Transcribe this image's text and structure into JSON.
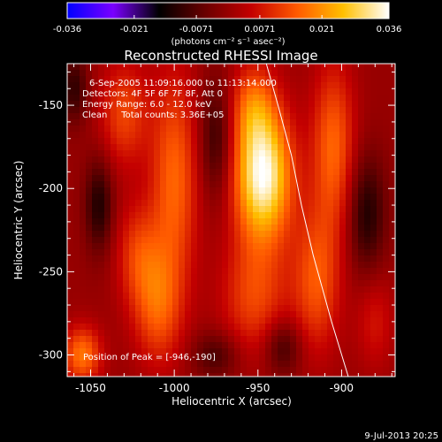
{
  "colorbar": {
    "tick_labels": [
      "-0.036",
      "-0.021",
      "-0.0071",
      "0.0071",
      "0.021",
      "0.036"
    ],
    "tick_values": [
      -0.036,
      -0.021,
      -0.0071,
      0.0071,
      0.021,
      0.036
    ],
    "range": [
      -0.036,
      0.036
    ],
    "units_label": "(photons cm⁻² s⁻¹ asec⁻²)",
    "colormap_stops": [
      "#0000ff",
      "#7a00ff",
      "#000000",
      "#6a0000",
      "#c40000",
      "#ff5a00",
      "#ffbf00",
      "#ffffff"
    ]
  },
  "chart_data": {
    "type": "heatmap",
    "title": "Reconstructed RHESSI Image",
    "xlabel": "Heliocentric X (arcsec)",
    "ylabel": "Heliocentric Y (arcsec)",
    "xlim": [
      -1064,
      -868
    ],
    "ylim": [
      -313,
      -125
    ],
    "xticks": [
      -1050,
      -1000,
      -950,
      -900
    ],
    "yticks": [
      -300,
      -250,
      -200,
      -150
    ],
    "grid": false,
    "peak": {
      "x": -946,
      "y": -190
    },
    "annotations": {
      "time_range": "6-Sep-2005 11:09:16.000 to 11:13:14.000",
      "detectors": "Detectors: 4F 5F 6F 7F 8F, Att 0",
      "energy_range": "Energy Range: 6.0 - 12.0 keV",
      "clean_counts": "Clean     Total counts: 3.36E+05",
      "peak_position": "Position of Peak = [-946,-190]"
    },
    "limb_curve": [
      [
        -945,
        -125
      ],
      [
        -938,
        -150
      ],
      [
        -930,
        -180
      ],
      [
        -924,
        -210
      ],
      [
        -917,
        -240
      ],
      [
        -906,
        -280
      ],
      [
        -896,
        -313
      ]
    ],
    "intensity_sources": [
      {
        "x": -947,
        "y": -192,
        "sx": 12,
        "sy": 28,
        "amp": 1.0
      },
      {
        "x": -953,
        "y": -150,
        "sx": 9,
        "sy": 18,
        "amp": 0.35
      },
      {
        "x": -952,
        "y": -265,
        "sx": 14,
        "sy": 25,
        "amp": 0.35
      },
      {
        "x": -1000,
        "y": -195,
        "sx": 10,
        "sy": 45,
        "amp": 0.45
      },
      {
        "x": -1010,
        "y": -270,
        "sx": 10,
        "sy": 25,
        "amp": 0.4
      },
      {
        "x": -1030,
        "y": -155,
        "sx": 10,
        "sy": 22,
        "amp": 0.35
      },
      {
        "x": -1022,
        "y": -240,
        "sx": 9,
        "sy": 22,
        "amp": 0.3
      },
      {
        "x": -905,
        "y": -175,
        "sx": 9,
        "sy": 35,
        "amp": 0.45
      },
      {
        "x": -915,
        "y": -255,
        "sx": 10,
        "sy": 30,
        "amp": 0.4
      },
      {
        "x": -1055,
        "y": -300,
        "sx": 8,
        "sy": 12,
        "amp": 0.5
      },
      {
        "x": -880,
        "y": -280,
        "sx": 8,
        "sy": 20,
        "amp": 0.2
      },
      {
        "x": -1045,
        "y": -210,
        "sx": 6,
        "sy": 20,
        "amp": -0.35
      },
      {
        "x": -975,
        "y": -170,
        "sx": 7,
        "sy": 25,
        "amp": -0.3
      },
      {
        "x": -935,
        "y": -295,
        "sx": 8,
        "sy": 12,
        "amp": -0.3
      },
      {
        "x": -885,
        "y": -215,
        "sx": 8,
        "sy": 25,
        "amp": -0.35
      },
      {
        "x": -1060,
        "y": -140,
        "sx": 6,
        "sy": 15,
        "amp": -0.3
      },
      {
        "x": -975,
        "y": -300,
        "sx": 10,
        "sy": 10,
        "amp": -0.25
      }
    ]
  },
  "footer": {
    "timestamp": "9-Jul-2013 20:25"
  }
}
